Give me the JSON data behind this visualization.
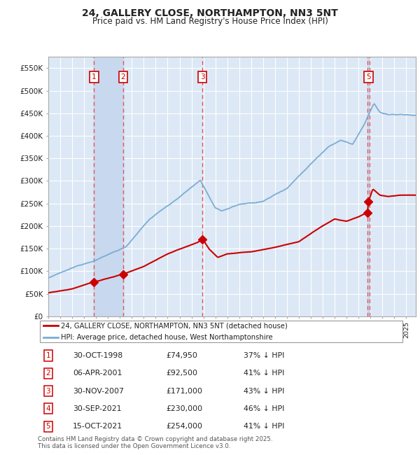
{
  "title": "24, GALLERY CLOSE, NORTHAMPTON, NN3 5NT",
  "subtitle": "Price paid vs. HM Land Registry's House Price Index (HPI)",
  "title_fontsize": 10,
  "subtitle_fontsize": 8.5,
  "plot_bg_color": "#dce8f5",
  "grid_color": "#ffffff",
  "ylim": [
    0,
    575000
  ],
  "yticks": [
    0,
    50000,
    100000,
    150000,
    200000,
    250000,
    300000,
    350000,
    400000,
    450000,
    500000,
    550000
  ],
  "sale_dates_x": [
    1998.83,
    2001.27,
    2007.92,
    2021.75,
    2021.83
  ],
  "sale_prices_y": [
    74950,
    92500,
    171000,
    230000,
    254000
  ],
  "sale_labels": [
    "1",
    "2",
    "3",
    "4",
    "5"
  ],
  "sale_color": "#cc0000",
  "hpi_color": "#7aadd4",
  "vline_color": "#e05555",
  "shade_color": "#c8d8ee",
  "legend_entries": [
    "24, GALLERY CLOSE, NORTHAMPTON, NN3 5NT (detached house)",
    "HPI: Average price, detached house, West Northamptonshire"
  ],
  "table_rows": [
    [
      "1",
      "30-OCT-1998",
      "£74,950",
      "37% ↓ HPI"
    ],
    [
      "2",
      "06-APR-2001",
      "£92,500",
      "41% ↓ HPI"
    ],
    [
      "3",
      "30-NOV-2007",
      "£171,000",
      "43% ↓ HPI"
    ],
    [
      "4",
      "30-SEP-2021",
      "£230,000",
      "46% ↓ HPI"
    ],
    [
      "5",
      "15-OCT-2021",
      "£254,000",
      "41% ↓ HPI"
    ]
  ],
  "footnote": "Contains HM Land Registry data © Crown copyright and database right 2025.\nThis data is licensed under the Open Government Licence v3.0.",
  "xmin": 1995.0,
  "xmax": 2025.8
}
